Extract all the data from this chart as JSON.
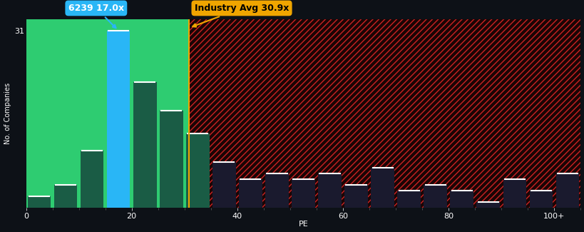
{
  "background_color": "#0d1117",
  "plot_bg_color": "#0d1117",
  "green_region_color": "#2ecc71",
  "blue_bar_color": "#29b6f6",
  "dark_bar_left_color": "#1a5c45",
  "dark_bar_right_color": "#1a1a2e",
  "industry_line_color": "#f0a500",
  "title_text": "6239 17.0x",
  "industry_label": "Industry Avg 30.9x",
  "xlabel": "PE",
  "ylabel": "No. of Companies",
  "ylim": [
    0,
    33
  ],
  "ytick_label": "31",
  "ytick_value": 31,
  "industry_avg": 30.9,
  "highlighted_bin": 15,
  "bin_width": 5,
  "bins": [
    0,
    5,
    10,
    15,
    20,
    25,
    30,
    35,
    40,
    45,
    50,
    55,
    60,
    65,
    70,
    75,
    80,
    85,
    90,
    95,
    100
  ],
  "values": [
    2,
    4,
    10,
    31,
    22,
    17,
    13,
    8,
    5,
    6,
    5,
    6,
    4,
    7,
    3,
    4,
    3,
    1,
    5,
    3,
    6
  ],
  "xtick_labels": [
    "0",
    "20",
    "40",
    "60",
    "80",
    "100+"
  ],
  "xtick_positions": [
    0,
    20,
    40,
    60,
    80,
    100
  ]
}
